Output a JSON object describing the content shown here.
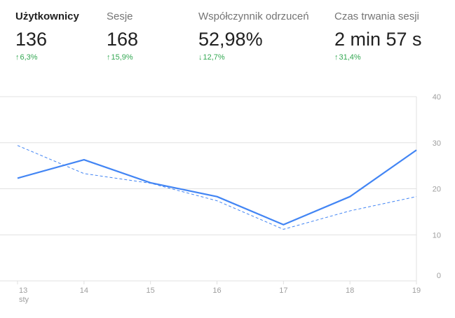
{
  "metrics": [
    {
      "label": "Użytkownicy",
      "value": "136",
      "arrow": "↑",
      "change": "6,3%",
      "direction": "up",
      "active": true
    },
    {
      "label": "Sesje",
      "value": "168",
      "arrow": "↑",
      "change": "15,9%",
      "direction": "up",
      "active": false
    },
    {
      "label": "Współczynnik odrzuceń",
      "value": "52,98%",
      "arrow": "↓",
      "change": "12,7%",
      "direction": "down",
      "active": false
    },
    {
      "label": "Czas trwania sesji",
      "value": "2 min 57 s",
      "arrow": "↑",
      "change": "31,4%",
      "direction": "up",
      "active": false
    }
  ],
  "colors": {
    "accent": "#4285f4",
    "positive": "#34a853",
    "grid": "#e0e0e0",
    "tick": "#9e9e9e"
  },
  "chart_data": {
    "type": "line",
    "x": [
      "13",
      "14",
      "15",
      "16",
      "17",
      "18",
      "19"
    ],
    "x_sublabel": "sty",
    "y_ticks": [
      "0",
      "10",
      "20",
      "30",
      "40"
    ],
    "ylim": [
      0,
      40
    ],
    "grid": true,
    "series": [
      {
        "style": "solid",
        "color": "#4285f4",
        "values": [
          22.3,
          26.3,
          21.3,
          18.3,
          12.2,
          18.3,
          28.4
        ]
      },
      {
        "style": "dashed",
        "color": "#4285f4",
        "values": [
          29.4,
          23.3,
          21.2,
          17.4,
          11.2,
          15.2,
          18.3
        ]
      }
    ]
  }
}
